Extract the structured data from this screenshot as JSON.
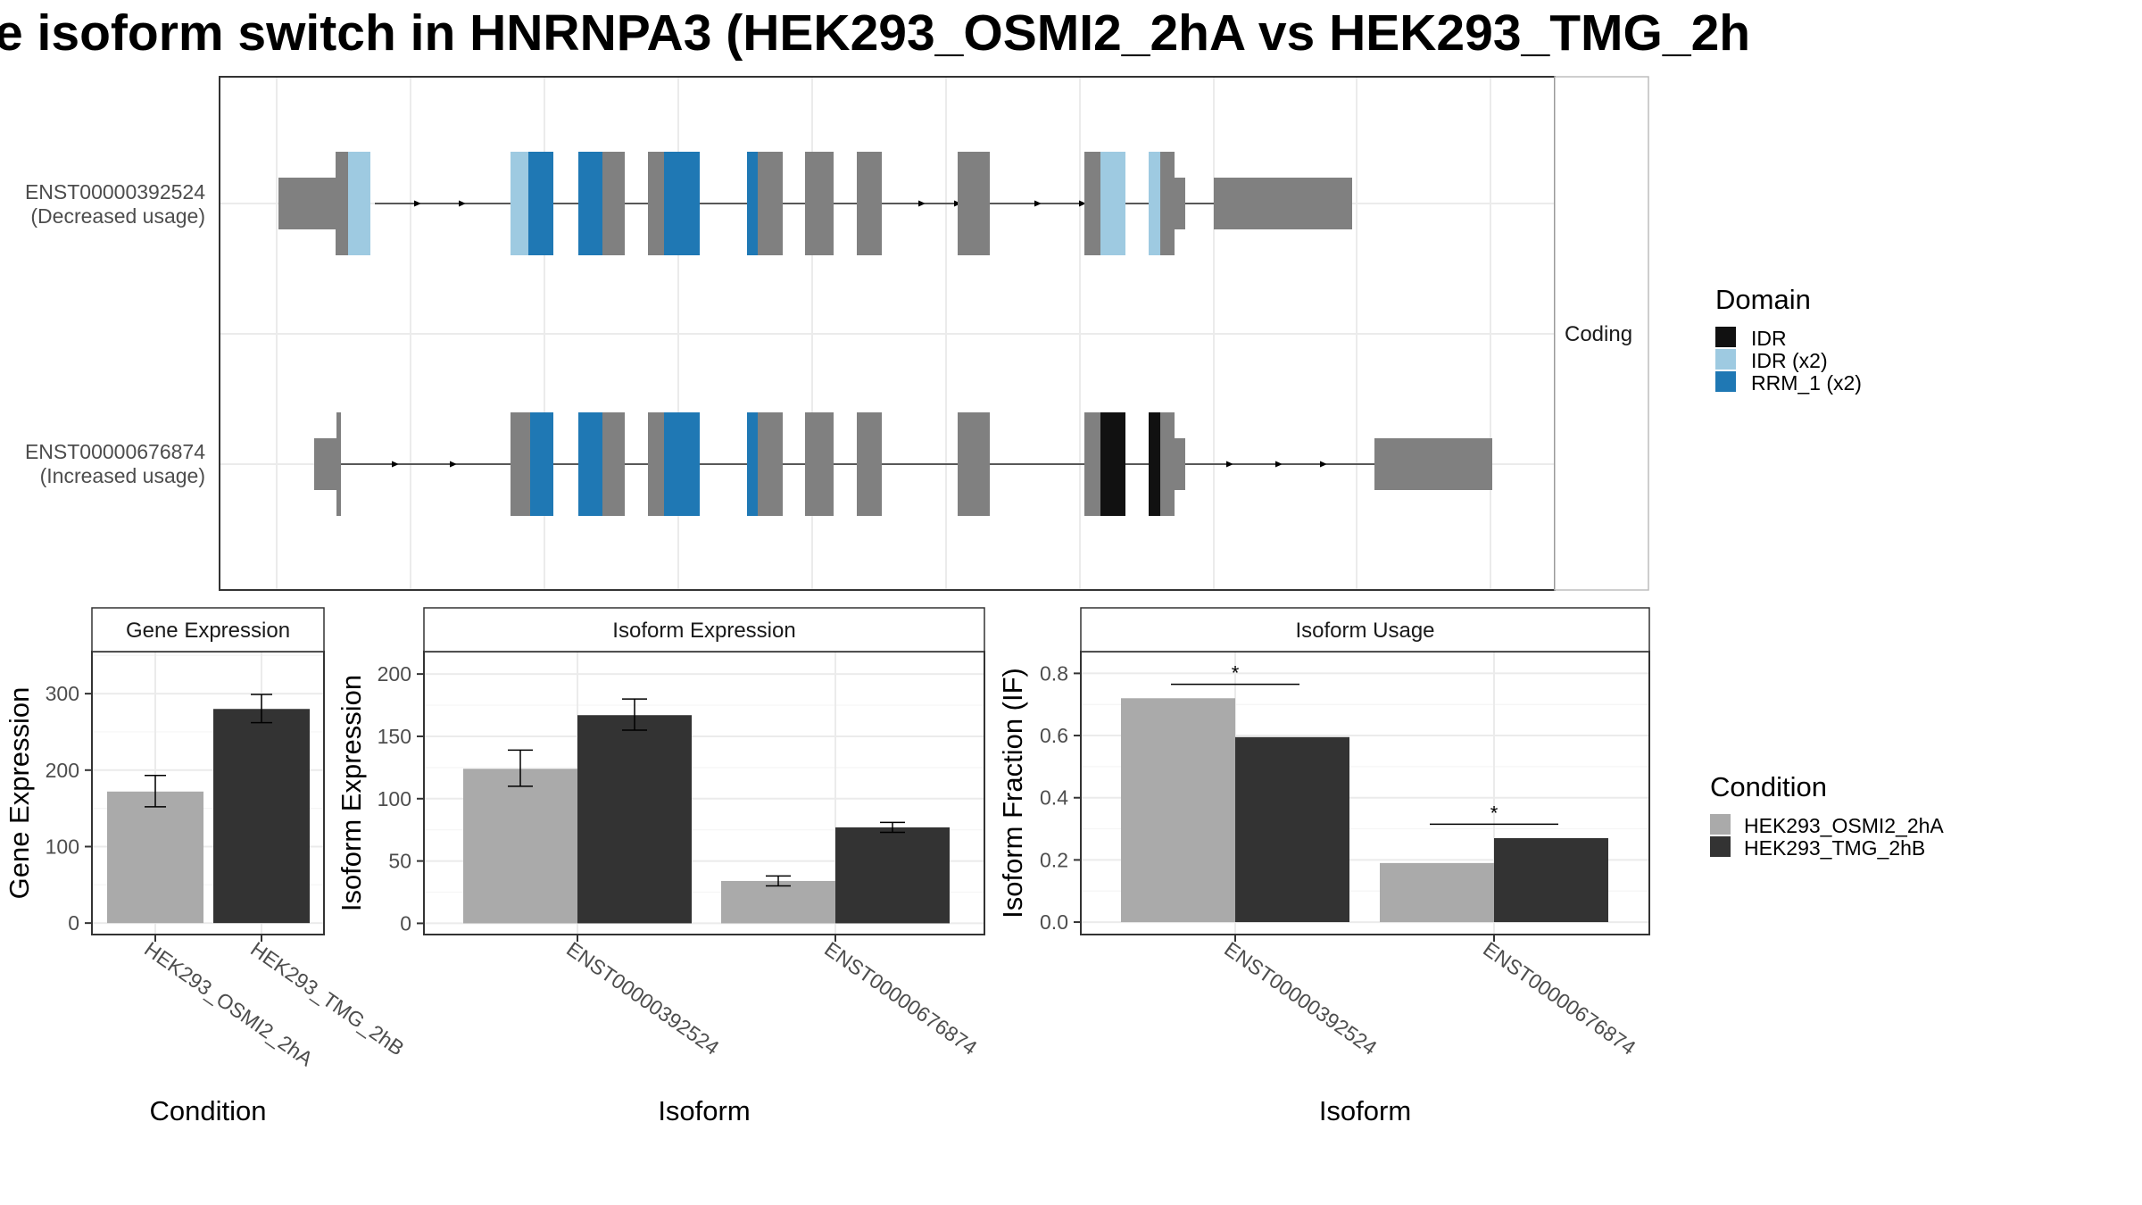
{
  "title": "e isoform switch in HNRNPA3 (HEK293_OSMI2_2hA vs HEK293_TMG_2h",
  "colors": {
    "osmi": "#aaaaaa",
    "tmg": "#333333",
    "exon": "#808080",
    "IDR": "#111111",
    "IDR_x2": "#9ecae1",
    "RRM_1_x2": "#1f78b4"
  },
  "structure": {
    "strip_label": "Coding",
    "isoforms": [
      {
        "id": "ENST00000392524",
        "usage": "(Decreased usage)"
      },
      {
        "id": "ENST00000676874",
        "usage": "(Increased usage)"
      }
    ]
  },
  "legends": {
    "domain": {
      "title": "Domain",
      "items": [
        {
          "label": "IDR",
          "color": "#111111"
        },
        {
          "label": "IDR (x2)",
          "color": "#9ecae1"
        },
        {
          "label": "RRM_1 (x2)",
          "color": "#1f78b4"
        }
      ]
    },
    "condition": {
      "title": "Condition",
      "items": [
        {
          "label": "HEK293_OSMI2_2hA",
          "color": "#aaaaaa"
        },
        {
          "label": "HEK293_TMG_2hB",
          "color": "#333333"
        }
      ]
    }
  },
  "chart_data": [
    {
      "type": "bar",
      "title": "Gene Expression",
      "xlabel": "Condition",
      "ylabel": "Gene Expression",
      "categories": [
        "HEK293_OSMI2_2hA",
        "HEK293_TMG_2hB"
      ],
      "values": [
        172,
        280
      ],
      "error_low": [
        152,
        262
      ],
      "error_high": [
        193,
        299
      ],
      "ylim": [
        -15,
        355
      ],
      "yticks": [
        0,
        100,
        200,
        300
      ]
    },
    {
      "type": "bar",
      "title": "Isoform Expression",
      "xlabel": "Isoform",
      "ylabel": "Isoform Expression",
      "categories": [
        "ENST00000392524",
        "ENST00000676874"
      ],
      "series": [
        {
          "name": "HEK293_OSMI2_2hA",
          "values": [
            124,
            34
          ],
          "error_low": [
            110,
            30
          ],
          "error_high": [
            139,
            38
          ]
        },
        {
          "name": "HEK293_TMG_2hB",
          "values": [
            167,
            77
          ],
          "error_low": [
            155,
            73
          ],
          "error_high": [
            180,
            81
          ]
        }
      ],
      "ylim": [
        -9,
        218
      ],
      "yticks": [
        0,
        50,
        100,
        150,
        200
      ]
    },
    {
      "type": "bar",
      "title": "Isoform Usage",
      "xlabel": "Isoform",
      "ylabel": "Isoform Fraction (IF)",
      "categories": [
        "ENST00000392524",
        "ENST00000676874"
      ],
      "series": [
        {
          "name": "HEK293_OSMI2_2hA",
          "values": [
            0.72,
            0.19
          ]
        },
        {
          "name": "HEK293_TMG_2hB",
          "values": [
            0.595,
            0.27
          ]
        }
      ],
      "significance": [
        "*",
        "*"
      ],
      "ylim": [
        -0.04,
        0.87
      ],
      "yticks": [
        "0.0",
        "0.2",
        "0.4",
        "0.6",
        "0.8"
      ]
    }
  ]
}
